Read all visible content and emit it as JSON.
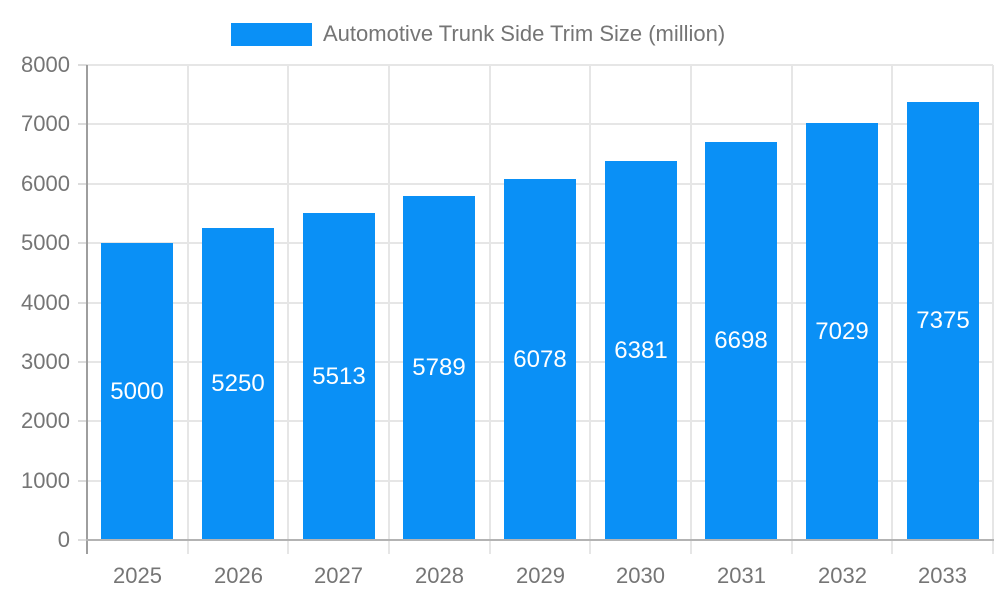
{
  "legend": {
    "label": "Automotive Trunk Side Trim Size (million)"
  },
  "colors": {
    "bar": "#0a90f6",
    "grid": "#e6e6e6",
    "baseline": "#b3b3b3",
    "y_axis_line": "#9e9e9e",
    "axis_text": "#757575",
    "value_label_text": "#ffffff",
    "background": "#ffffff"
  },
  "chart_data": {
    "type": "bar",
    "title": "Automotive Trunk Side Trim Size (million)",
    "categories": [
      "2025",
      "2026",
      "2027",
      "2028",
      "2029",
      "2030",
      "2031",
      "2032",
      "2033"
    ],
    "values": [
      5000,
      5250,
      5513,
      5789,
      6078,
      6381,
      6698,
      7029,
      7375
    ],
    "xlabel": "",
    "ylabel": "",
    "ylim": [
      0,
      8000
    ],
    "ytick_step": 1000,
    "ytick_labels": [
      "0",
      "1000",
      "2000",
      "3000",
      "4000",
      "5000",
      "6000",
      "7000",
      "8000"
    ],
    "grid": true,
    "legend_position": "top",
    "value_labels": "inside-middle",
    "series": [
      {
        "name": "Automotive Trunk Side Trim Size (million)",
        "values": [
          5000,
          5250,
          5513,
          5789,
          6078,
          6381,
          6698,
          7029,
          7375
        ]
      }
    ]
  }
}
